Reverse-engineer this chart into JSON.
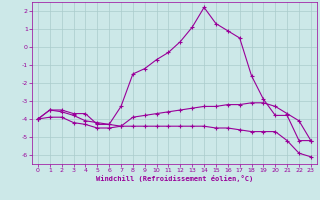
{
  "x": [
    0,
    1,
    2,
    3,
    4,
    5,
    6,
    7,
    8,
    9,
    10,
    11,
    12,
    13,
    14,
    15,
    16,
    17,
    18,
    19,
    20,
    21,
    22,
    23
  ],
  "line1": [
    -4.0,
    -3.5,
    -3.5,
    -3.7,
    -3.7,
    -4.3,
    -4.3,
    -3.3,
    -1.5,
    -1.2,
    -0.7,
    -0.3,
    0.3,
    1.1,
    2.2,
    1.3,
    0.9,
    0.5,
    -1.6,
    -2.9,
    -3.8,
    -3.8,
    -5.2,
    -5.2
  ],
  "line2": [
    -4.0,
    -3.5,
    -3.6,
    -3.8,
    -4.1,
    -4.2,
    -4.3,
    -4.4,
    -3.9,
    -3.8,
    -3.7,
    -3.6,
    -3.5,
    -3.4,
    -3.3,
    -3.3,
    -3.2,
    -3.2,
    -3.1,
    -3.1,
    -3.3,
    -3.7,
    -4.1,
    -5.2
  ],
  "line3": [
    -4.0,
    -3.9,
    -3.9,
    -4.2,
    -4.3,
    -4.5,
    -4.5,
    -4.4,
    -4.4,
    -4.4,
    -4.4,
    -4.4,
    -4.4,
    -4.4,
    -4.4,
    -4.5,
    -4.5,
    -4.6,
    -4.7,
    -4.7,
    -4.7,
    -5.2,
    -5.9,
    -6.1
  ],
  "bg_color": "#cce8e8",
  "grid_color": "#aacccc",
  "line_color": "#990099",
  "xlabel": "Windchill (Refroidissement éolien,°C)",
  "ylim": [
    -6.5,
    2.5
  ],
  "xlim": [
    -0.5,
    23.5
  ],
  "yticks": [
    -6,
    -5,
    -4,
    -3,
    -2,
    -1,
    0,
    1,
    2
  ],
  "xticks": [
    0,
    1,
    2,
    3,
    4,
    5,
    6,
    7,
    8,
    9,
    10,
    11,
    12,
    13,
    14,
    15,
    16,
    17,
    18,
    19,
    20,
    21,
    22,
    23
  ],
  "marker": "+"
}
